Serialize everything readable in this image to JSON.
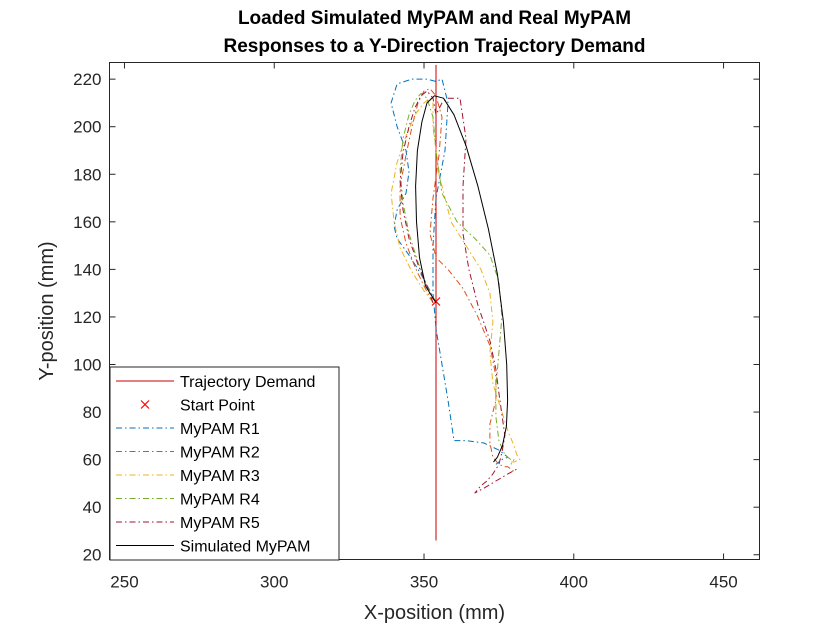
{
  "chart_data": {
    "type": "line",
    "title": [
      "Loaded Simulated MyPAM and Real MyPAM",
      "Responses to a Y-Direction Trajectory Demand"
    ],
    "xlabel": "X-position (mm)",
    "ylabel": "Y-position (mm)",
    "xlim": [
      245,
      462
    ],
    "ylim": [
      18,
      227
    ],
    "xticks": [
      250,
      300,
      350,
      400,
      450
    ],
    "yticks": [
      20,
      40,
      60,
      80,
      100,
      120,
      140,
      160,
      180,
      200,
      220
    ],
    "grid": false,
    "legend_position": "bottom-left",
    "series": [
      {
        "name": "Trajectory Demand",
        "color": "#cc0000",
        "style": "solid",
        "x": [
          354,
          354
        ],
        "y": [
          26,
          226
        ]
      },
      {
        "name": "Start Point",
        "color": "#ff0000",
        "style": "marker-x",
        "x": [
          354
        ],
        "y": [
          126.5
        ]
      },
      {
        "name": "MyPAM R1",
        "color": "#0072bd",
        "style": "dashdot",
        "x": [
          354,
          352,
          349,
          345,
          341,
          340,
          341,
          344,
          345,
          344,
          341,
          339,
          341,
          346,
          351,
          354,
          356,
          358,
          357,
          354,
          353,
          353,
          353,
          354,
          356,
          358,
          360,
          364,
          370,
          375,
          377,
          378,
          376,
          374
        ],
        "y": [
          126,
          131,
          138,
          146,
          153,
          158,
          165,
          172,
          181,
          190,
          200,
          210,
          218,
          220,
          220,
          219,
          220,
          210,
          190,
          170,
          150,
          140,
          130,
          115,
          100,
          85,
          68,
          68,
          67,
          64,
          62,
          61,
          60,
          58
        ]
      },
      {
        "name": "MyPAM R2",
        "color": "#d95319",
        "style": "dashdot",
        "x": [
          353,
          350,
          347,
          344,
          342,
          342,
          344,
          346,
          348,
          350,
          352,
          354,
          356,
          355,
          353,
          352,
          354,
          358,
          363,
          368,
          372,
          374,
          374,
          372,
          372,
          373,
          375,
          377,
          378,
          379,
          380
        ],
        "y": [
          126,
          133,
          141,
          151,
          162,
          175,
          188,
          200,
          210,
          215,
          216,
          213,
          204,
          188,
          170,
          155,
          145,
          140,
          132,
          120,
          108,
          95,
          85,
          75,
          67,
          61,
          58,
          57,
          57,
          56,
          55
        ]
      },
      {
        "name": "MyPAM R3",
        "color": "#edb120",
        "style": "dashdot",
        "x": [
          353,
          350,
          346,
          342,
          340,
          339,
          341,
          344,
          347,
          350,
          352,
          353,
          353,
          355,
          359,
          364,
          369,
          372,
          373,
          372,
          373,
          376,
          378,
          380,
          381,
          382,
          380,
          378
        ],
        "y": [
          126,
          131,
          139,
          149,
          160,
          172,
          185,
          196,
          205,
          210,
          212,
          210,
          200,
          180,
          160,
          150,
          140,
          130,
          118,
          105,
          92,
          80,
          72,
          66,
          62,
          60,
          59,
          59
        ]
      },
      {
        "name": "MyPAM R4",
        "color": "#77ac30",
        "style": "dashdot",
        "x": [
          354,
          351,
          348,
          345,
          343,
          342,
          343,
          345,
          347,
          349,
          351,
          353,
          354,
          356,
          361,
          367,
          372,
          375,
          376,
          375,
          374,
          374,
          375,
          377,
          379,
          380,
          379
        ],
        "y": [
          126,
          133,
          143,
          155,
          168,
          182,
          195,
          205,
          211,
          214,
          212,
          204,
          190,
          172,
          160,
          153,
          146,
          135,
          120,
          105,
          90,
          78,
          68,
          62,
          60,
          60,
          58
        ]
      },
      {
        "name": "MyPAM R5",
        "color": "#a2142f",
        "style": "dashdot",
        "x": [
          353,
          351,
          348,
          345,
          343,
          342,
          343,
          345,
          347,
          349,
          351,
          353,
          354,
          356,
          358,
          362,
          364,
          363,
          363,
          365,
          368,
          372,
          374,
          375,
          376,
          377,
          376,
          375,
          373,
          371,
          369,
          367,
          370,
          374,
          378,
          381
        ],
        "y": [
          126,
          133,
          142,
          153,
          165,
          177,
          189,
          200,
          208,
          213,
          215,
          212,
          205,
          210,
          212,
          212,
          195,
          175,
          155,
          140,
          125,
          110,
          98,
          88,
          79,
          70,
          63,
          58,
          54,
          51,
          49,
          46,
          48,
          51,
          54,
          56
        ]
      },
      {
        "name": "Simulated MyPAM",
        "color": "#000000",
        "style": "solid",
        "x": [
          354,
          350.5,
          348.5,
          347.5,
          347.2,
          347.8,
          349.3,
          351,
          353.5,
          356.5,
          360,
          364,
          368,
          371.5,
          374.5,
          376.5,
          377.6,
          377.9,
          377.5,
          376.2,
          374.5,
          373.2
        ],
        "y": [
          126,
          133,
          145,
          160,
          175,
          190,
          202,
          210,
          213,
          212,
          205,
          192,
          175,
          157,
          138,
          118,
          100,
          85,
          74,
          66,
          61,
          59
        ]
      }
    ],
    "legend": [
      "Trajectory Demand",
      "Start Point",
      "MyPAM R1",
      "MyPAM R2",
      "MyPAM R3",
      "MyPAM R4",
      "MyPAM R5",
      "Simulated MyPAM"
    ]
  }
}
